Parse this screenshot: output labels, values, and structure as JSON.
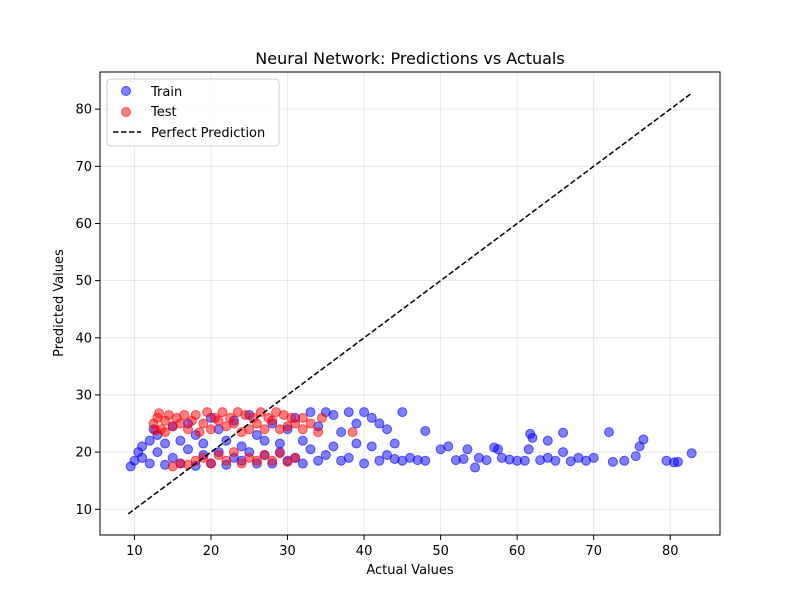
{
  "chart_data": {
    "type": "scatter",
    "title": "Neural Network: Predictions vs Actuals",
    "xlabel": "Actual Values",
    "ylabel": "Predicted Values",
    "xlim": [
      5.5,
      86.5
    ],
    "ylim": [
      5.5,
      86.5
    ],
    "xticks": [
      10,
      20,
      30,
      40,
      50,
      60,
      70,
      80
    ],
    "yticks": [
      10,
      20,
      30,
      40,
      50,
      60,
      70,
      80
    ],
    "grid": true,
    "legend_position": "top-left",
    "series": [
      {
        "name": "Train",
        "kind": "points",
        "color": "#0000ff",
        "alpha": 0.5,
        "points": [
          [
            9.5,
            17.5
          ],
          [
            10,
            18.5
          ],
          [
            10.5,
            20
          ],
          [
            11,
            21
          ],
          [
            11,
            19
          ],
          [
            12,
            22
          ],
          [
            12,
            18
          ],
          [
            12.5,
            24
          ],
          [
            13,
            20
          ],
          [
            13,
            23
          ],
          [
            14,
            17.8
          ],
          [
            14,
            21.5
          ],
          [
            15,
            19
          ],
          [
            15,
            24.5
          ],
          [
            16,
            18
          ],
          [
            16,
            22
          ],
          [
            17,
            20.5
          ],
          [
            17,
            25
          ],
          [
            18,
            17.6
          ],
          [
            18,
            23
          ],
          [
            19,
            19.5
          ],
          [
            19,
            21.5
          ],
          [
            20,
            18
          ],
          [
            20,
            26
          ],
          [
            21,
            20
          ],
          [
            21,
            24
          ],
          [
            22,
            17.8
          ],
          [
            22,
            22
          ],
          [
            23,
            19
          ],
          [
            23,
            25.5
          ],
          [
            24,
            18.5
          ],
          [
            24,
            21
          ],
          [
            25,
            20
          ],
          [
            25,
            26.5
          ],
          [
            26,
            18
          ],
          [
            26,
            23
          ],
          [
            27,
            19.5
          ],
          [
            27,
            22
          ],
          [
            28,
            18
          ],
          [
            28,
            25
          ],
          [
            29,
            20
          ],
          [
            29,
            21.5
          ],
          [
            30,
            18.5
          ],
          [
            30,
            24
          ],
          [
            31,
            19
          ],
          [
            31,
            26
          ],
          [
            32,
            18
          ],
          [
            32,
            22
          ],
          [
            33,
            20.5
          ],
          [
            33,
            27
          ],
          [
            34,
            18.5
          ],
          [
            34,
            24.5
          ],
          [
            35,
            19.5
          ],
          [
            35,
            27
          ],
          [
            36,
            21
          ],
          [
            36,
            26.5
          ],
          [
            37,
            18.5
          ],
          [
            37,
            23.5
          ],
          [
            38,
            19
          ],
          [
            38,
            27
          ],
          [
            39,
            21.5
          ],
          [
            39,
            25
          ],
          [
            40,
            18
          ],
          [
            40,
            27
          ],
          [
            41,
            21
          ],
          [
            41,
            26
          ],
          [
            42,
            18.5
          ],
          [
            42,
            25
          ],
          [
            43,
            19.5
          ],
          [
            43,
            24
          ],
          [
            44,
            18.8
          ],
          [
            44,
            21.5
          ],
          [
            45,
            18.5
          ],
          [
            45,
            27
          ],
          [
            46,
            19
          ],
          [
            47,
            18.6
          ],
          [
            48,
            23.7
          ],
          [
            48,
            18.5
          ],
          [
            50,
            20.5
          ],
          [
            51,
            21
          ],
          [
            52,
            18.6
          ],
          [
            53,
            18.8
          ],
          [
            53.5,
            20.5
          ],
          [
            54.5,
            17.3
          ],
          [
            55,
            19
          ],
          [
            56,
            18.6
          ],
          [
            57,
            20.8
          ],
          [
            57.5,
            20.5
          ],
          [
            58,
            19
          ],
          [
            59,
            18.7
          ],
          [
            60,
            18.5
          ],
          [
            61,
            18.5
          ],
          [
            61.5,
            20.5
          ],
          [
            61.7,
            23.2
          ],
          [
            62,
            22.5
          ],
          [
            63,
            18.6
          ],
          [
            64,
            19
          ],
          [
            64,
            22
          ],
          [
            65,
            18.5
          ],
          [
            66,
            20
          ],
          [
            66,
            23.4
          ],
          [
            67,
            18.4
          ],
          [
            68,
            19
          ],
          [
            69,
            18.5
          ],
          [
            70,
            19
          ],
          [
            72,
            23.5
          ],
          [
            72.5,
            18.3
          ],
          [
            74,
            18.5
          ],
          [
            75.5,
            19.3
          ],
          [
            76,
            21
          ],
          [
            76.5,
            22.2
          ],
          [
            79.5,
            18.5
          ],
          [
            80.5,
            18.2
          ],
          [
            81,
            18.3
          ],
          [
            82.8,
            19.8
          ]
        ]
      },
      {
        "name": "Test",
        "kind": "points",
        "color": "#ff0000",
        "alpha": 0.5,
        "points": [
          [
            12.5,
            25
          ],
          [
            13,
            26
          ],
          [
            13.5,
            24
          ],
          [
            14,
            25.5
          ],
          [
            14.5,
            26.5
          ],
          [
            15,
            17.5
          ],
          [
            15,
            24.5
          ],
          [
            15.5,
            26
          ],
          [
            16,
            18
          ],
          [
            16,
            25
          ],
          [
            16.5,
            26.5
          ],
          [
            17,
            17.8
          ],
          [
            17,
            24
          ],
          [
            17.5,
            25.5
          ],
          [
            18,
            18.5
          ],
          [
            18,
            26.5
          ],
          [
            18.5,
            23.5
          ],
          [
            19,
            19
          ],
          [
            19,
            25
          ],
          [
            19.5,
            27
          ],
          [
            20,
            18
          ],
          [
            20,
            24
          ],
          [
            20.5,
            26
          ],
          [
            21,
            19.5
          ],
          [
            21,
            25.5
          ],
          [
            21.5,
            27
          ],
          [
            22,
            18.5
          ],
          [
            22,
            24.5
          ],
          [
            22.5,
            26
          ],
          [
            23,
            20
          ],
          [
            23,
            25
          ],
          [
            23.5,
            27
          ],
          [
            24,
            18
          ],
          [
            24,
            23.5
          ],
          [
            24.5,
            26.5
          ],
          [
            25,
            19
          ],
          [
            25,
            24
          ],
          [
            25.5,
            26
          ],
          [
            26,
            18.5
          ],
          [
            26,
            25
          ],
          [
            26.5,
            27
          ],
          [
            27,
            19.5
          ],
          [
            27,
            24
          ],
          [
            27.5,
            26
          ],
          [
            28,
            18.5
          ],
          [
            28,
            25.5
          ],
          [
            28.5,
            27
          ],
          [
            29,
            19.8
          ],
          [
            29,
            24
          ],
          [
            29.5,
            26.5
          ],
          [
            30,
            18.3
          ],
          [
            30,
            24.5
          ],
          [
            30.5,
            26
          ],
          [
            31,
            19
          ],
          [
            31,
            25
          ],
          [
            32,
            24
          ],
          [
            32,
            26
          ],
          [
            33,
            25
          ],
          [
            34,
            23.5
          ],
          [
            34.5,
            26
          ],
          [
            38.5,
            23.5
          ],
          [
            12.8,
            23.8
          ],
          [
            14,
            23.5
          ],
          [
            13.2,
            26.8
          ]
        ]
      },
      {
        "name": "Perfect Prediction",
        "kind": "line",
        "color": "#000000",
        "dash": true,
        "x": [
          9.2,
          82.9
        ],
        "y": [
          9.2,
          82.9
        ]
      }
    ]
  }
}
